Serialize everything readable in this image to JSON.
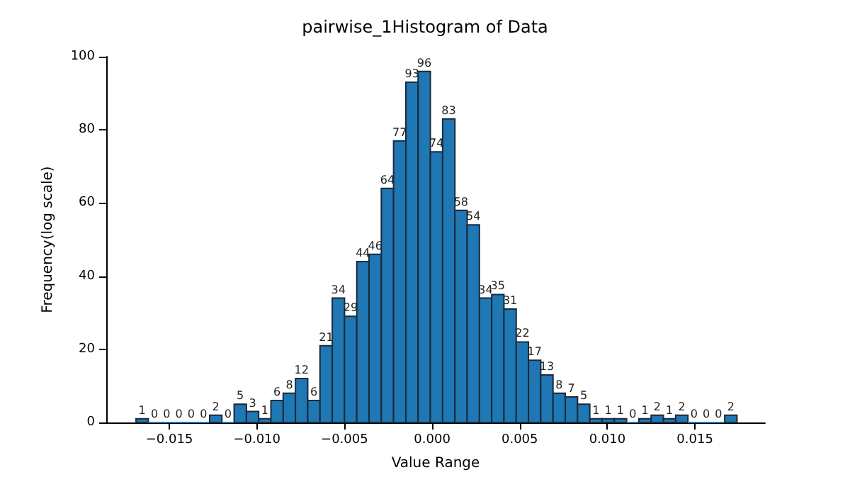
{
  "chart_data": {
    "type": "histogram",
    "title": "pairwise_1Histogram of Data",
    "xlabel": "Value Range",
    "ylabel": "Frequency(log scale)",
    "bins": [
      -0.0169,
      -0.0162,
      -0.0155,
      -0.0148,
      -0.0141,
      -0.0134,
      -0.0127,
      -0.012,
      -0.0113,
      -0.0106,
      -0.0099,
      -0.0092,
      -0.0085,
      -0.0078,
      -0.0071,
      -0.0064,
      -0.0057,
      -0.005,
      -0.0043,
      -0.0036,
      -0.0029,
      -0.0022,
      -0.0015,
      -0.0008,
      -0.0001,
      0.0006,
      0.0013,
      0.002,
      0.0027,
      0.0034,
      0.0041,
      0.0048,
      0.0055,
      0.0062,
      0.0069,
      0.0076,
      0.0083,
      0.009,
      0.0097,
      0.0104,
      0.0111,
      0.0118,
      0.0125,
      0.0132,
      0.0139,
      0.0146,
      0.0153,
      0.016,
      0.0167,
      0.0174
    ],
    "values": [
      1,
      0,
      0,
      0,
      0,
      0,
      2,
      0,
      5,
      3,
      1,
      6,
      8,
      12,
      6,
      21,
      34,
      29,
      44,
      46,
      64,
      77,
      93,
      96,
      74,
      83,
      58,
      54,
      34,
      35,
      31,
      22,
      17,
      13,
      8,
      7,
      5,
      1,
      1,
      1,
      0,
      1,
      2,
      1,
      2,
      0,
      0,
      0,
      2
    ],
    "color": "#1f77b4",
    "data_labels": true,
    "xlim": [
      -0.0186,
      0.019
    ],
    "xticks": [
      -0.015,
      {
        "value": -0.01,
        "label": "−0.010"
      },
      -0.005,
      {
        "value": 0,
        "label": "0.000"
      },
      0.005,
      {
        "value": 0.01,
        "label": "0.010"
      },
      0.015
    ],
    "ylim": [
      0,
      100
    ],
    "yticks": [
      0,
      20,
      40,
      60,
      80,
      100
    ],
    "grid": false
  }
}
